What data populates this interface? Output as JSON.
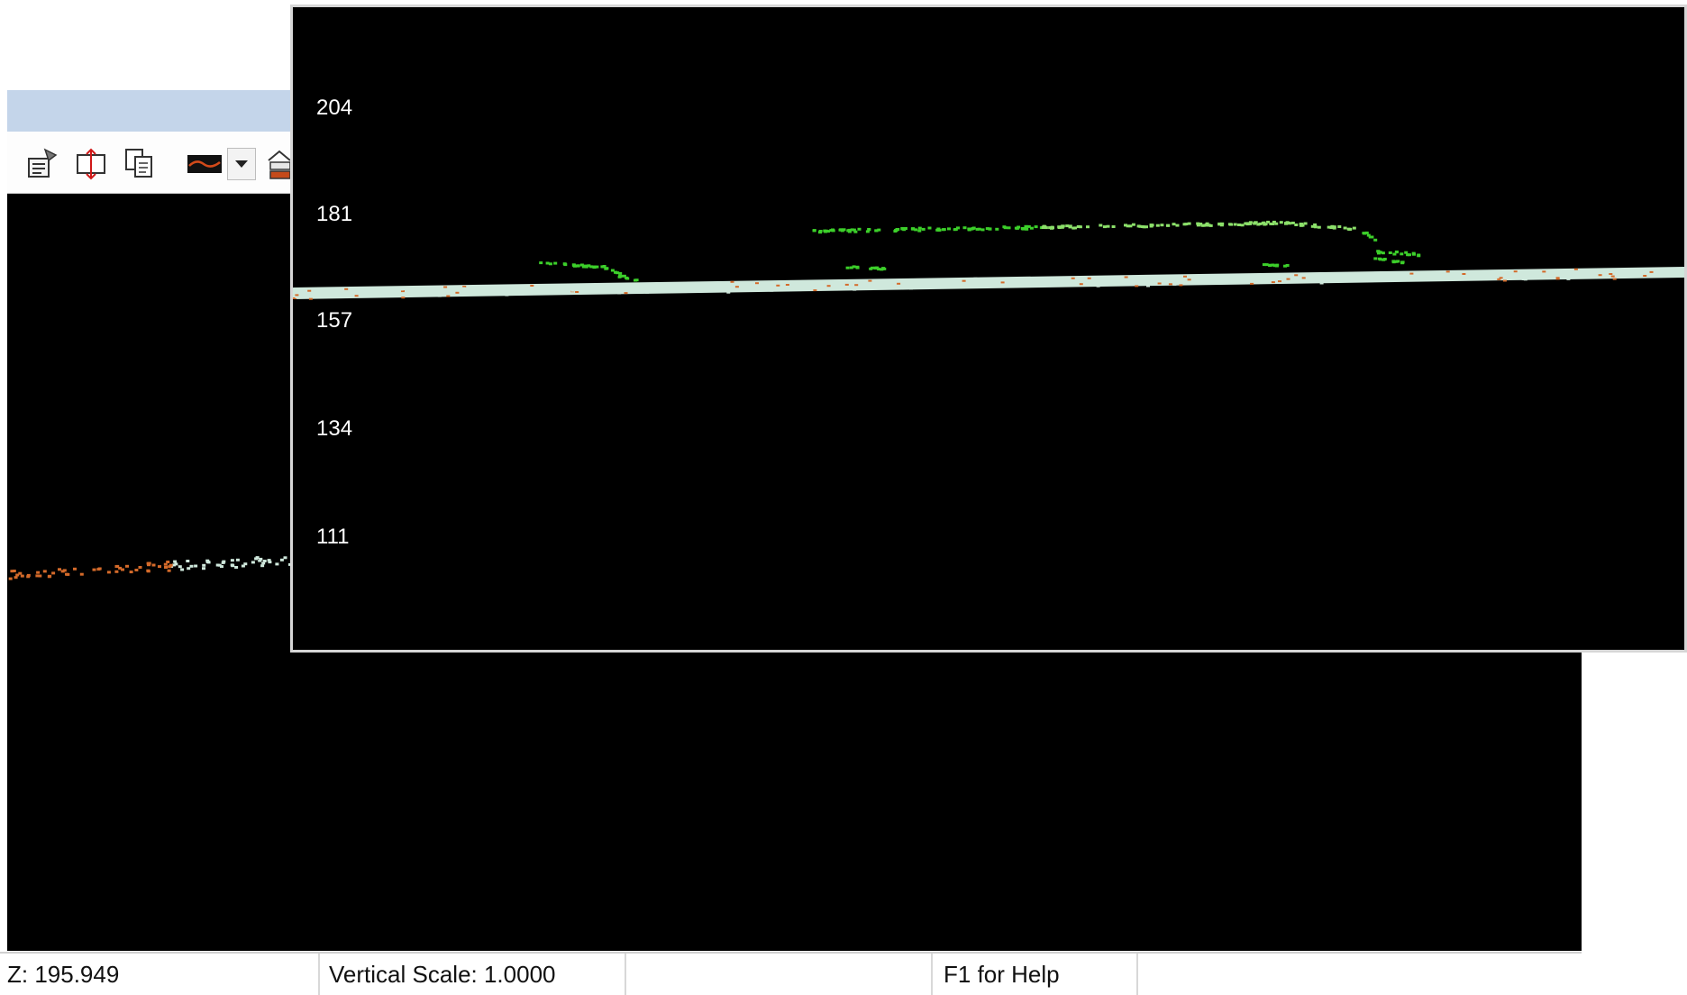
{
  "toolbar": {
    "buttons": [
      {
        "icon": "properties-icon"
      },
      {
        "icon": "fit-vertical-icon"
      },
      {
        "icon": "copy-icon"
      },
      {
        "icon": "profile-line-icon"
      },
      {
        "icon": "chevron-down-icon"
      },
      {
        "icon": "layers-icon"
      }
    ]
  },
  "status": {
    "z": "Z: 195.949",
    "vertical_scale": "Vertical Scale: 1.0000",
    "empty": "",
    "help": "F1 for Help"
  },
  "front_view": {
    "y_ticks": [
      "204",
      "181",
      "157",
      "134",
      "111"
    ]
  },
  "colors": {
    "canvas": "#000000",
    "ground": "#cfe8dc",
    "vegetation": "#3ccf2a",
    "bright_green": "#8ce06a",
    "orange": "#d46a2a"
  }
}
